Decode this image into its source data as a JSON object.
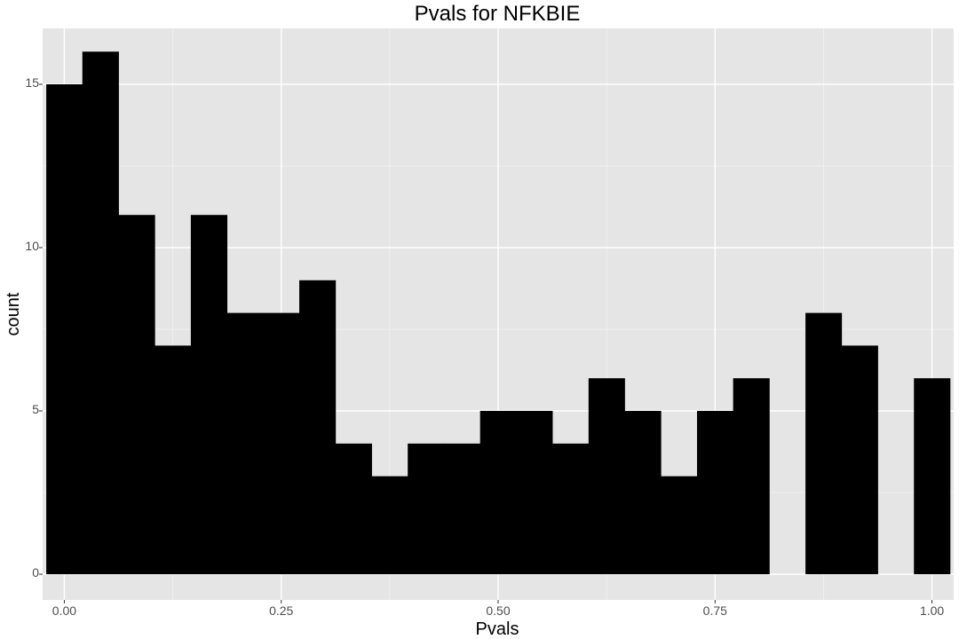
{
  "chart_data": {
    "type": "bar",
    "title": "Pvals for NFKBIE",
    "xlabel": "Pvals",
    "ylabel": "count",
    "xlim": [
      -0.025,
      1.025
    ],
    "ylim": [
      0,
      16
    ],
    "x_ticks": [
      0.0,
      0.25,
      0.5,
      0.75,
      1.0
    ],
    "x_tick_labels": [
      "0.00",
      "0.25",
      "0.50",
      "0.75",
      "1.00"
    ],
    "y_ticks": [
      0,
      5,
      10,
      15
    ],
    "y_tick_labels": [
      "0",
      "5",
      "10",
      "15"
    ],
    "bin_width": 0.0417,
    "bins": [
      {
        "x0": -0.0208,
        "x1": 0.0208,
        "count": 15
      },
      {
        "x0": 0.0208,
        "x1": 0.0625,
        "count": 16
      },
      {
        "x0": 0.0625,
        "x1": 0.1042,
        "count": 11
      },
      {
        "x0": 0.1042,
        "x1": 0.1458,
        "count": 7
      },
      {
        "x0": 0.1458,
        "x1": 0.1875,
        "count": 11
      },
      {
        "x0": 0.1875,
        "x1": 0.2292,
        "count": 8
      },
      {
        "x0": 0.2292,
        "x1": 0.2708,
        "count": 8
      },
      {
        "x0": 0.2708,
        "x1": 0.3125,
        "count": 9
      },
      {
        "x0": 0.3125,
        "x1": 0.3542,
        "count": 4
      },
      {
        "x0": 0.3542,
        "x1": 0.3958,
        "count": 3
      },
      {
        "x0": 0.3958,
        "x1": 0.4375,
        "count": 4
      },
      {
        "x0": 0.4375,
        "x1": 0.4792,
        "count": 4
      },
      {
        "x0": 0.4792,
        "x1": 0.5208,
        "count": 5
      },
      {
        "x0": 0.5208,
        "x1": 0.5625,
        "count": 5
      },
      {
        "x0": 0.5625,
        "x1": 0.6042,
        "count": 4
      },
      {
        "x0": 0.6042,
        "x1": 0.6458,
        "count": 6
      },
      {
        "x0": 0.6458,
        "x1": 0.6875,
        "count": 5
      },
      {
        "x0": 0.6875,
        "x1": 0.7292,
        "count": 3
      },
      {
        "x0": 0.7292,
        "x1": 0.7708,
        "count": 5
      },
      {
        "x0": 0.7708,
        "x1": 0.8125,
        "count": 6
      },
      {
        "x0": 0.8125,
        "x1": 0.8542,
        "count": 0
      },
      {
        "x0": 0.8542,
        "x1": 0.8958,
        "count": 8
      },
      {
        "x0": 0.8958,
        "x1": 0.9375,
        "count": 7
      },
      {
        "x0": 0.9375,
        "x1": 0.9792,
        "count": 0
      },
      {
        "x0": 0.9792,
        "x1": 1.0208,
        "count": 6
      }
    ],
    "grid": true,
    "colors": {
      "panel_background": "#e5e5e5",
      "grid_major": "#ffffff",
      "grid_minor": "#f2f2f2",
      "bar_fill": "#000000",
      "tick_text": "#4d4d4d",
      "tick_mark": "#333333"
    }
  }
}
